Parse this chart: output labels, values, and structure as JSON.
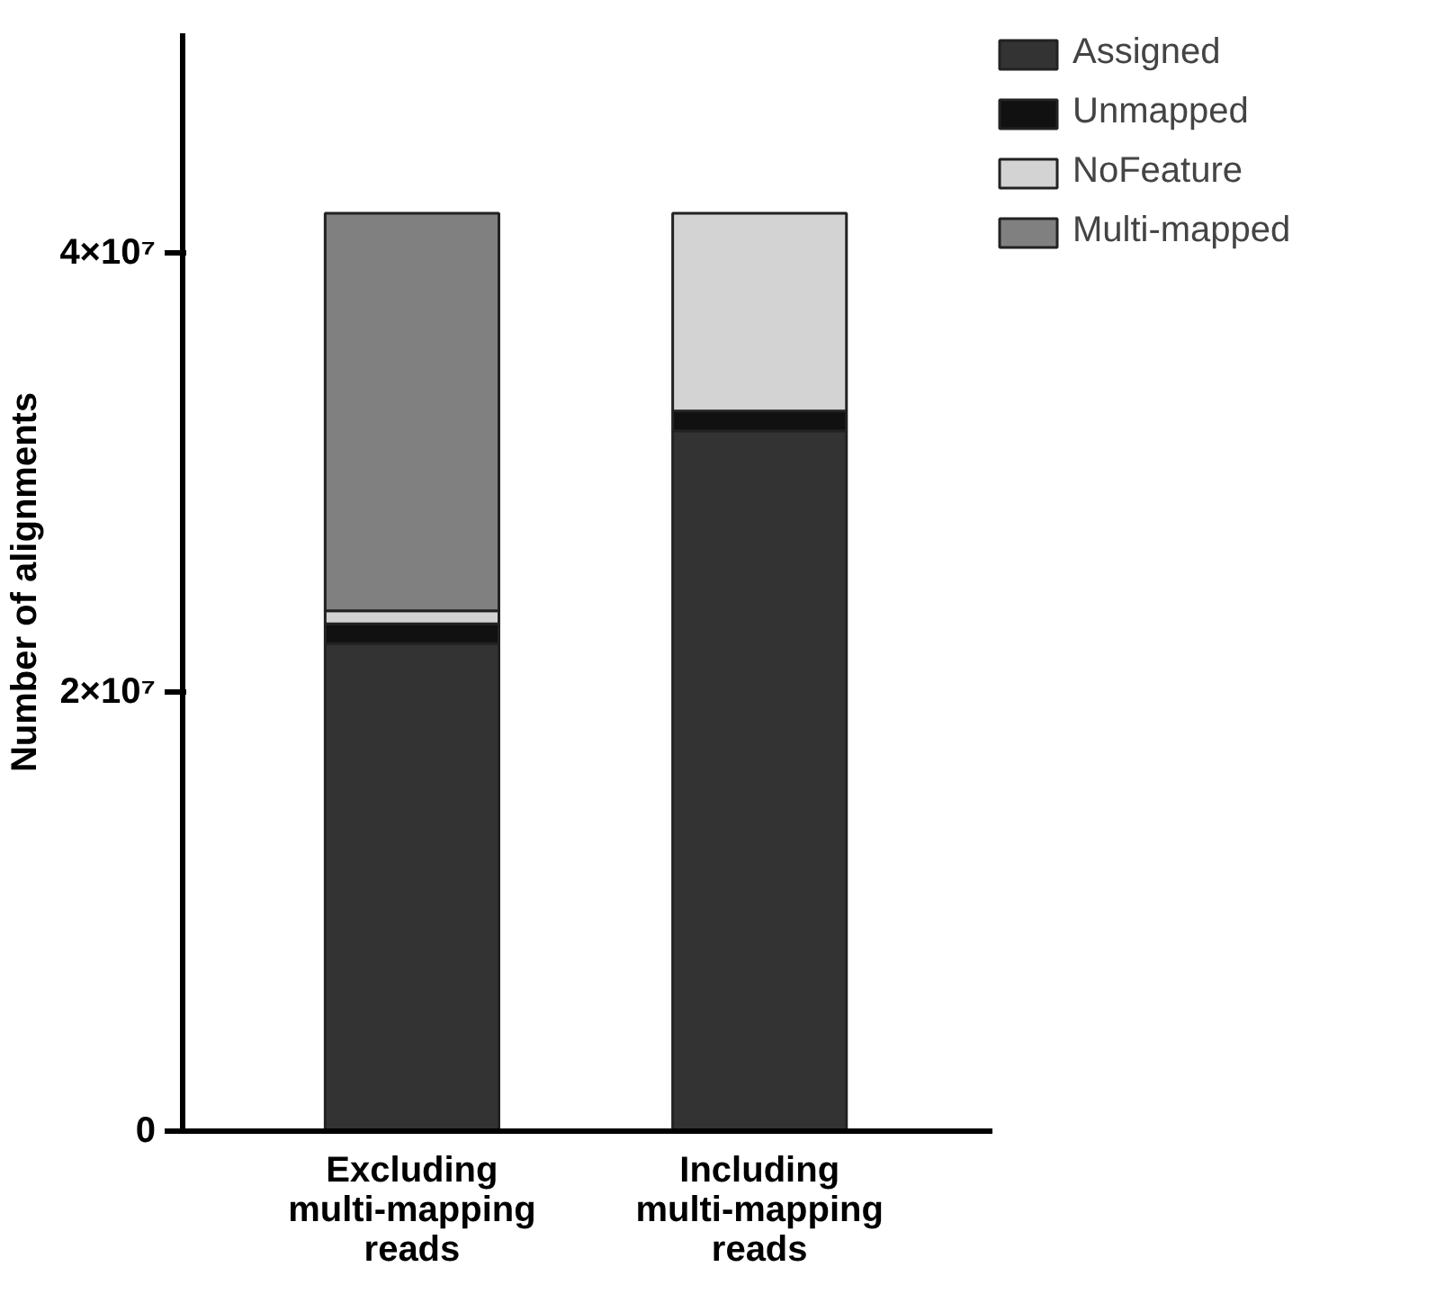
{
  "chart_data": {
    "type": "bar",
    "stacked": true,
    "ylabel": "Number of alignments",
    "categories": [
      "Excluding\nmulti-mapping\nreads",
      "Including\nmulti-mapping\nreads"
    ],
    "series": [
      {
        "name": "Assigned",
        "color": "#333333",
        "values": [
          22200000,
          31900000
        ]
      },
      {
        "name": "Unmapped",
        "color": "#111111",
        "values": [
          900000,
          900000
        ]
      },
      {
        "name": "NoFeature",
        "color": "#d3d3d3",
        "values": [
          600000,
          9000000
        ]
      },
      {
        "name": "Multi-mapped",
        "color": "#808080",
        "values": [
          18100000,
          null
        ]
      }
    ],
    "ylim": [
      0,
      50000000
    ],
    "yticks": [
      {
        "value": 0,
        "label": "0"
      },
      {
        "value": 20000000,
        "label": "2×10⁷"
      },
      {
        "value": 40000000,
        "label": "4×10⁷"
      }
    ],
    "grid": false,
    "legend": "top right"
  }
}
